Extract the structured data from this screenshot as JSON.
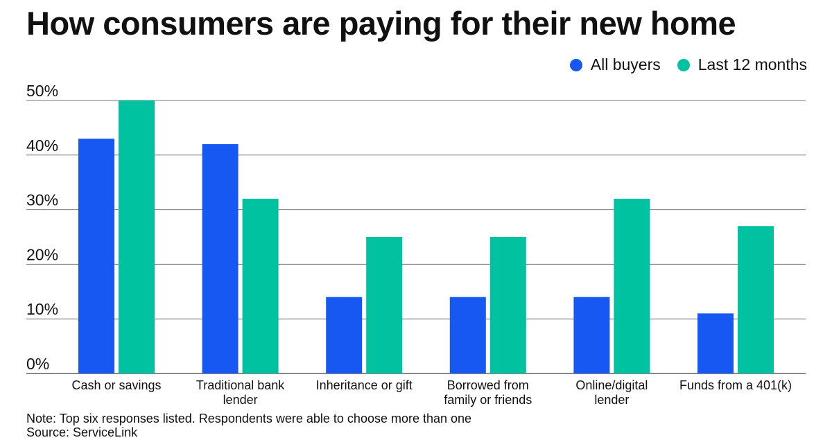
{
  "chart_data": {
    "type": "bar",
    "title": "How consumers are paying for their new home",
    "categories": [
      "Cash or savings",
      "Traditional bank lender",
      "Inheritance or gift",
      "Borrowed from family or friends",
      "Online/digital lender",
      "Funds from a 401(k)"
    ],
    "category_lines": [
      [
        "Cash or savings"
      ],
      [
        "Traditional bank",
        "lender"
      ],
      [
        "Inheritance or gift"
      ],
      [
        "Borrowed from",
        "family or friends"
      ],
      [
        "Online/digital",
        "lender"
      ],
      [
        "Funds from a 401(k)"
      ]
    ],
    "series": [
      {
        "name": "All buyers",
        "color": "#1757f2",
        "values": [
          43,
          42,
          14,
          14,
          14,
          11
        ]
      },
      {
        "name": "Last 12 months",
        "color": "#00c2a0",
        "values": [
          50,
          32,
          25,
          25,
          32,
          27
        ]
      }
    ],
    "ylim": [
      0,
      50
    ],
    "yticks": [
      0,
      10,
      20,
      30,
      40,
      50
    ],
    "ytick_labels": [
      "0%",
      "10%",
      "20%",
      "30%",
      "40%",
      "50%"
    ],
    "grid": true,
    "legend": "top-right"
  },
  "footer": {
    "note": "Note: Top six responses listed. Respondents were able to choose more than one",
    "source": "Source: ServiceLink"
  }
}
